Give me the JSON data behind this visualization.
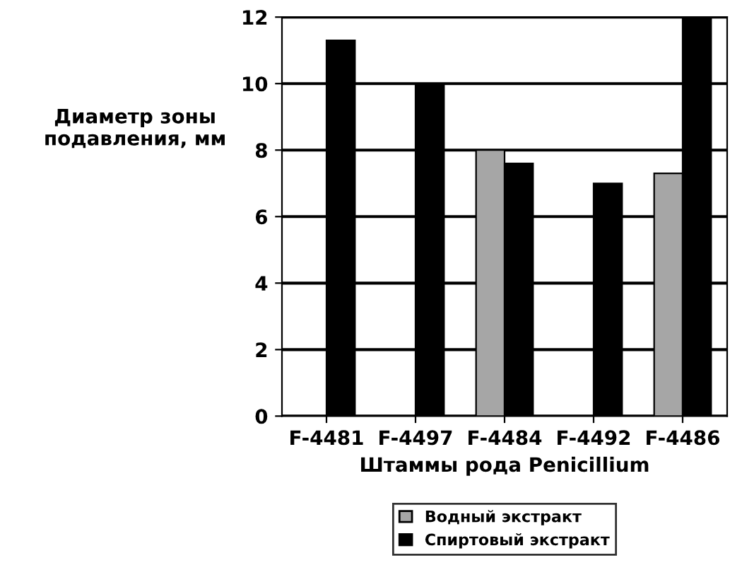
{
  "chart_data": {
    "type": "bar",
    "xlabel": "Штаммы рода Penicillium",
    "ylabel": "Диаметр зоны\nподавления, мм",
    "categories": [
      "F-4481",
      "F-4497",
      "F-4484",
      "F-4492",
      "F-4486"
    ],
    "series": [
      {
        "name": "Водный экстракт",
        "color": "#a6a6a6",
        "values": [
          0,
          0,
          8,
          0,
          7.3
        ]
      },
      {
        "name": "Спиртовый экстракт",
        "color": "#000000",
        "values": [
          11.3,
          10,
          7.6,
          7,
          12
        ]
      }
    ],
    "ylim": [
      0,
      12
    ],
    "yticks": [
      0,
      2,
      4,
      6,
      8,
      10,
      12
    ],
    "grid": "y",
    "legend": "bottom"
  }
}
